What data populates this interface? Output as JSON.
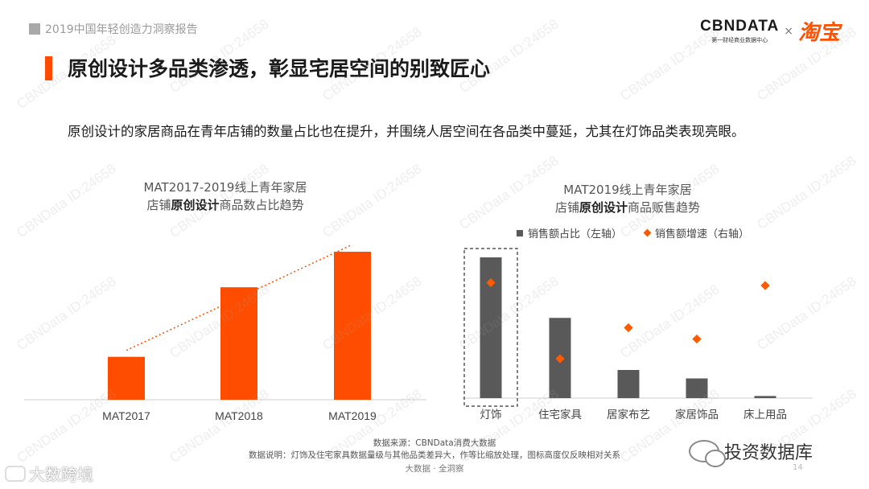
{
  "header": {
    "report_tag": "2019中国年轻创造力洞察报告",
    "brand_cbn": "CBNDATA",
    "brand_cbn_sub": "第一财经商业数据中心",
    "brand_x": "×",
    "brand_taobao": "淘宝"
  },
  "title": "原创设计多品类渗透，彰显宅居空间的别致匠心",
  "intro": "原创设计的家居商品在青年店铺的数量占比也在提升，并围绕人居空间在各品类中蔓延，尤其在灯饰品类表现亮眼。",
  "watermark_text": "CBNData ID:24658",
  "chart_data": [
    {
      "type": "bar",
      "title_line1": "MAT2017-2019线上青年家居",
      "title_line2_pre": "店铺",
      "title_line2_bold": "原创设计",
      "title_line2_post": "商品数占比趋势",
      "categories": [
        "MAT2017",
        "MAT2018",
        "MAT2019"
      ],
      "values": [
        0.29,
        0.76,
        1.0
      ],
      "trendline": true,
      "bar_color": "#ff4d00"
    },
    {
      "type": "bar",
      "title_line1": "MAT2019线上青年家居",
      "title_line2_pre": "店铺",
      "title_line2_bold": "原创设计",
      "title_line2_post": "商品贩售趋势",
      "categories": [
        "灯饰",
        "住宅家具",
        "居家布艺",
        "家居饰品",
        "床上用品"
      ],
      "series": [
        {
          "name": "销售额占比（左轴）",
          "type": "bar",
          "values": [
            1.0,
            0.57,
            0.2,
            0.14,
            0.015
          ],
          "color": "#595959"
        },
        {
          "name": "销售额增速（右轴）",
          "type": "scatter",
          "values": [
            0.82,
            0.28,
            0.5,
            0.42,
            0.8
          ],
          "color": "#ff5a00"
        }
      ],
      "highlight_category": "灯饰"
    }
  ],
  "footer": {
    "source": "数据来源：CBNData消费大数据",
    "note": "数据说明：灯饰及住宅家具数据量级与其他品类差异大，作等比缩放处理，图标高度仅反映相对关系",
    "tagline": "大数据 · 全洞察",
    "page_number": "14",
    "wechat_name": "投资数据库",
    "logo_text": "大数跨境"
  }
}
